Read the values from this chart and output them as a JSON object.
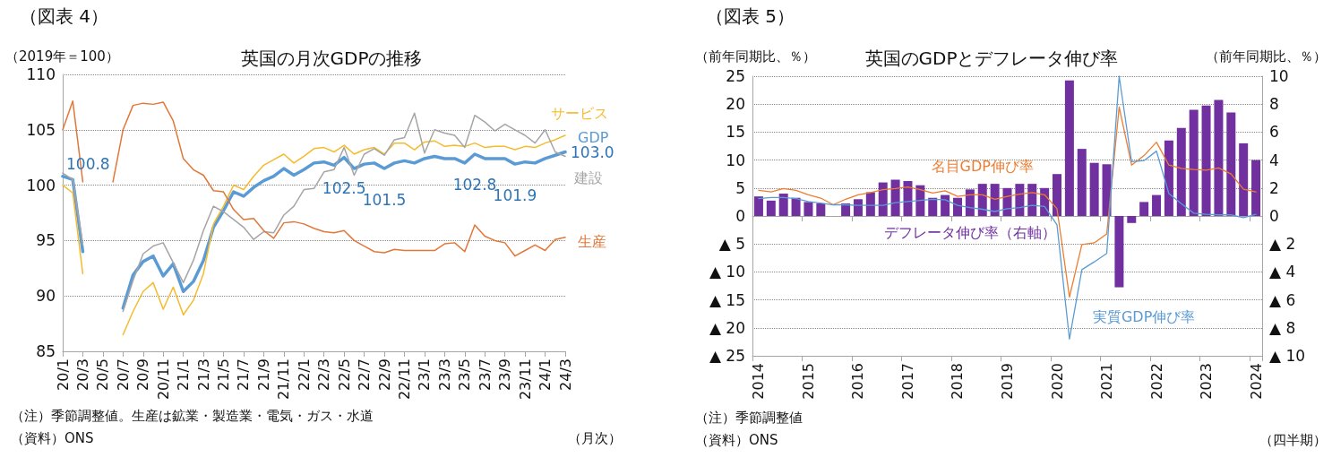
{
  "chart_data": [
    {
      "type": "line",
      "title": "英国の月次GDPの推移",
      "ylabel": "（2019年＝100）",
      "annotations": [
        "（図表 4）",
        "（注）季節調整値。生産は鉱業・製造業・電気・ガス・水道",
        "（資料）ONS",
        "（月次）"
      ],
      "categories": [
        "20/1",
        null,
        "20/3",
        null,
        "20/5",
        null,
        "20/7",
        null,
        "20/9",
        null,
        "20/11",
        null,
        "21/1",
        null,
        "21/3",
        null,
        "21/5",
        null,
        "21/7",
        null,
        "21/9",
        null,
        "21/11",
        null,
        "22/1",
        null,
        "22/3",
        null,
        "22/5",
        null,
        "22/7",
        null,
        "22/9",
        null,
        "22/11",
        null,
        "23/1",
        null,
        "23/3",
        null,
        "23/5",
        null,
        "23/7",
        null,
        "23/9",
        null,
        "23/11",
        null,
        "24/1",
        null,
        "24/3"
      ],
      "series": [
        {
          "name": "GDP",
          "color": "#5b9bd5",
          "values": [
            100.8,
            100.5,
            94.0,
            null,
            null,
            null,
            88.9,
            91.9,
            93.1,
            93.6,
            91.8,
            92.9,
            90.4,
            91.3,
            93.2,
            96.2,
            97.7,
            99.4,
            99.0,
            99.8,
            100.4,
            100.8,
            101.5,
            100.9,
            101.4,
            102.0,
            102.1,
            101.8,
            102.5,
            101.5,
            101.9,
            102.0,
            101.5,
            102.0,
            102.2,
            102.0,
            102.4,
            102.6,
            102.4,
            102.4,
            102.0,
            102.8,
            102.4,
            102.4,
            102.4,
            101.9,
            102.1,
            102.0,
            102.4,
            102.7,
            103.0
          ],
          "value_labels": [
            "100.8",
            null,
            null,
            null,
            null,
            null,
            null,
            null,
            null,
            null,
            null,
            null,
            null,
            null,
            null,
            null,
            null,
            null,
            null,
            null,
            null,
            null,
            null,
            null,
            null,
            null,
            null,
            null,
            "102.5",
            null,
            null,
            null,
            "101.5",
            null,
            null,
            null,
            null,
            null,
            null,
            null,
            null,
            "102.8",
            null,
            null,
            null,
            "101.9",
            null,
            null,
            null,
            null,
            "103.0"
          ]
        },
        {
          "name": "サービス",
          "color": "#f5bb2e",
          "values": [
            100.0,
            99.3,
            92.0,
            null,
            null,
            null,
            86.5,
            88.6,
            90.4,
            91.2,
            88.8,
            90.8,
            88.3,
            89.6,
            92.0,
            96.5,
            98.1,
            100.0,
            99.6,
            100.8,
            101.8,
            102.3,
            102.8,
            102.0,
            102.6,
            103.3,
            103.4,
            103.0,
            103.6,
            102.8,
            103.2,
            103.4,
            102.8,
            103.8,
            103.8,
            103.2,
            103.9,
            104.0,
            103.5,
            103.6,
            103.5,
            103.8,
            103.4,
            103.5,
            103.5,
            103.2,
            103.5,
            103.4,
            103.8,
            104.1,
            104.5
          ]
        },
        {
          "name": "建設",
          "color": "#a5a5a5",
          "values": [
            101.1,
            100.5,
            94.6,
            null,
            null,
            null,
            88.6,
            91.4,
            93.8,
            94.5,
            94.8,
            93.0,
            91.2,
            93.2,
            95.9,
            98.1,
            97.6,
            96.9,
            96.2,
            95.1,
            95.8,
            95.7,
            97.3,
            98.1,
            99.6,
            99.7,
            101.2,
            101.4,
            103.4,
            100.9,
            102.8,
            103.3,
            102.7,
            104.1,
            104.3,
            106.5,
            102.9,
            105.0,
            104.7,
            104.5,
            103.4,
            106.3,
            105.7,
            104.9,
            105.5,
            105.0,
            104.5,
            103.8,
            105.0,
            103.0,
            102.6
          ]
        },
        {
          "name": "生産",
          "color": "#e2773a",
          "values": [
            105.0,
            107.6,
            100.3,
            null,
            null,
            100.3,
            105.0,
            107.2,
            107.4,
            107.3,
            107.5,
            105.8,
            102.4,
            101.4,
            100.9,
            99.5,
            99.4,
            97.8,
            96.9,
            97.0,
            95.9,
            95.2,
            96.6,
            96.7,
            96.5,
            96.1,
            95.8,
            95.7,
            95.9,
            95.0,
            94.5,
            94.0,
            93.9,
            94.2,
            94.1,
            94.1,
            94.1,
            94.1,
            94.7,
            94.8,
            94.0,
            96.4,
            95.4,
            95.0,
            94.8,
            93.6,
            94.1,
            94.6,
            94.1,
            95.1,
            95.3
          ]
        }
      ],
      "ylim": [
        85,
        110
      ],
      "yticks": [
        85,
        90,
        95,
        100,
        105,
        110
      ],
      "grid": "y",
      "marker": "none",
      "line_style": "solid"
    },
    {
      "type": "line",
      "title": "英国のGDPとデフレータ伸び率",
      "ylabel": "（前年同期比、％）",
      "y2label": "（前年同期比、％）",
      "annotations": [
        "（図表 5）",
        "（注）季節調整値",
        "（資料）ONS",
        "（四半期）"
      ],
      "categories": [
        "2014",
        null,
        null,
        null,
        "2015",
        null,
        null,
        null,
        "2016",
        null,
        null,
        null,
        "2017",
        null,
        null,
        null,
        "2018",
        null,
        null,
        null,
        "2019",
        null,
        null,
        null,
        "2020",
        null,
        null,
        null,
        "2021",
        null,
        null,
        null,
        "2022",
        null,
        null,
        null,
        "2023",
        null,
        null,
        null,
        "2024"
      ],
      "series": [
        {
          "name": "デフレータ伸び率（右軸）",
          "type": "bar",
          "axis": "y2",
          "color": "#7030a0",
          "values": [
            1.4,
            1.1,
            1.6,
            1.3,
            1.0,
            0.9,
            0,
            0.9,
            1.2,
            1.7,
            2.4,
            2.6,
            2.5,
            2.2,
            1.3,
            1.5,
            1.3,
            1.9,
            2.3,
            2.3,
            2.0,
            2.3,
            2.3,
            2.0,
            3.0,
            9.7,
            4.8,
            3.8,
            3.7,
            -5.1,
            -0.5,
            1.0,
            1.5,
            5.4,
            6.3,
            7.6,
            7.9,
            8.3,
            7.4,
            5.2,
            4.0
          ]
        },
        {
          "name": "名目GDP伸び率",
          "color": "#ed7d31",
          "values": [
            4.6,
            4.3,
            4.9,
            4.6,
            3.8,
            3.2,
            2.0,
            3.0,
            3.8,
            4.2,
            4.7,
            4.9,
            5.2,
            4.7,
            4.1,
            4.5,
            3.5,
            3.8,
            3.8,
            3.0,
            3.5,
            3.9,
            4.2,
            3.8,
            1.3,
            -14.5,
            -5.1,
            -4.8,
            -3.2,
            19.5,
            9.1,
            10.8,
            13.2,
            9.1,
            8.5,
            8.3,
            8.2,
            8.6,
            7.5,
            4.8,
            4.3
          ]
        },
        {
          "name": "実質GDP伸び率",
          "color": "#5b9bd5",
          "values": [
            3.1,
            3.3,
            3.3,
            3.1,
            2.6,
            2.3,
            2.0,
            2.0,
            1.9,
            1.9,
            1.9,
            2.4,
            2.6,
            2.8,
            3.0,
            2.9,
            1.9,
            1.5,
            1.2,
            0.8,
            1.3,
            1.5,
            1.9,
            1.7,
            -1.6,
            -22.0,
            -9.6,
            -8.2,
            -6.7,
            25.0,
            9.7,
            9.9,
            11.6,
            4.0,
            2.2,
            0.5,
            0.3,
            0.2,
            0.2,
            -0.3,
            0.3
          ]
        }
      ],
      "ylim": [
        -25,
        25
      ],
      "yticks": [
        {
          "value": -25,
          "label": "▲ 25"
        },
        {
          "value": -20,
          "label": "▲ 20"
        },
        {
          "value": -15,
          "label": "▲ 15"
        },
        {
          "value": -10,
          "label": "▲ 10"
        },
        {
          "value": -5,
          "label": "▲ 5"
        },
        0,
        5,
        10,
        15,
        20,
        25
      ],
      "y2lim": [
        -10,
        10
      ],
      "y2ticks": [
        {
          "value": -10,
          "label": "▲ 10"
        },
        {
          "value": -8,
          "label": "▲ 8"
        },
        {
          "value": -6,
          "label": "▲ 6"
        },
        {
          "value": -4,
          "label": "▲ 4"
        },
        {
          "value": -2,
          "label": "▲ 2"
        },
        0,
        2,
        4,
        6,
        8,
        10
      ],
      "grid": "y",
      "marker": "none",
      "line_style": "solid"
    }
  ]
}
